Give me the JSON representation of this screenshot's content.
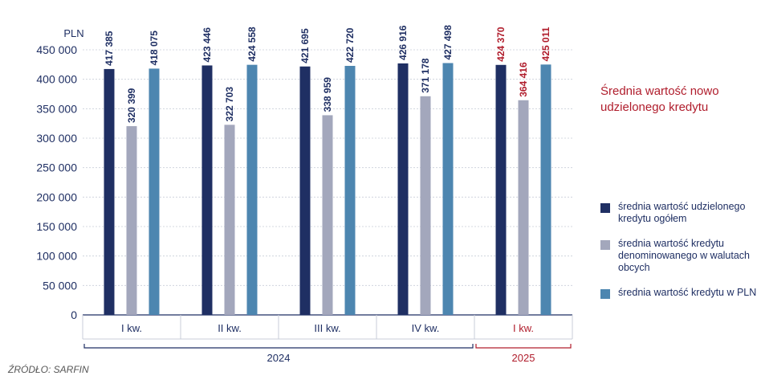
{
  "chart_data": {
    "type": "bar",
    "ylabel": "PLN",
    "ylim": [
      0,
      450000
    ],
    "yticks": [
      0,
      50000,
      100000,
      150000,
      200000,
      250000,
      300000,
      350000,
      400000,
      450000
    ],
    "ytick_labels": [
      "0",
      "50 000",
      "100 000",
      "150 000",
      "200 000",
      "250 000",
      "300 000",
      "350 000",
      "400 000",
      "450 000"
    ],
    "grid": true,
    "categories": [
      "I kw.",
      "II kw.",
      "III kw.",
      "IV kw.",
      "I kw."
    ],
    "groups": [
      {
        "label": "2024",
        "span": [
          0,
          3
        ],
        "color": "#1f2f63"
      },
      {
        "label": "2025",
        "span": [
          4,
          4
        ],
        "color": "#b01d2c"
      }
    ],
    "series": [
      {
        "name": "średnia wartość udzielonego kredytu ogółem",
        "color": "#1f2f63",
        "values": [
          417385,
          423446,
          421695,
          426916,
          424370
        ],
        "labels": [
          "417 385",
          "423 446",
          "421 695",
          "426 916",
          "424 370"
        ]
      },
      {
        "name": "średnia wartość kredytu denominowanego w walutach obcych",
        "color": "#a3a7bc",
        "values": [
          320399,
          322703,
          338959,
          371178,
          364416
        ],
        "labels": [
          "320 399",
          "322 703",
          "338 959",
          "371 178",
          "364 416"
        ]
      },
      {
        "name": "średnia wartość kredytu w PLN",
        "color": "#4d86b0",
        "values": [
          418075,
          424558,
          422720,
          427498,
          425011
        ],
        "labels": [
          "418 075",
          "424 558",
          "422 720",
          "427 498",
          "425 011"
        ]
      }
    ],
    "highlight_category_index": 4,
    "highlight_label_color": "#b01d2c",
    "default_label_color": "#1f2f63",
    "legend_placement": "right",
    "title": "Średnia wartość nowo udzielonego kredytu"
  },
  "source": "ŹRÓDŁO: SARFIN"
}
